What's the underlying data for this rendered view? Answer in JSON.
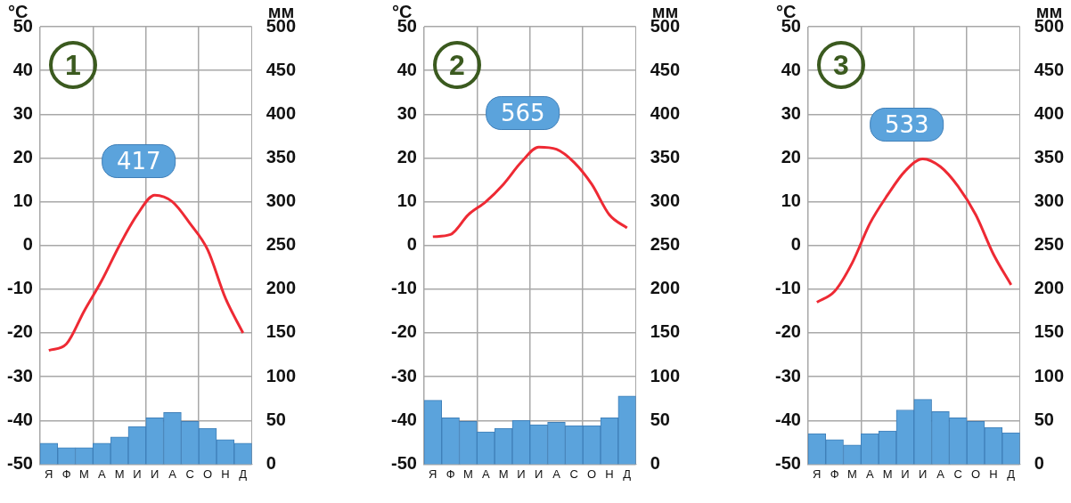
{
  "chart_data": [
    {
      "type": "bar",
      "title": "1",
      "ylabel": "°C",
      "y2label": "мм",
      "categories": [
        "Я",
        "Ф",
        "М",
        "А",
        "М",
        "И",
        "И",
        "А",
        "С",
        "О",
        "Н",
        "Д"
      ],
      "series": [
        {
          "axis": "y2",
          "color": "#5ba3dc",
          "values": [
            24,
            19,
            19,
            24,
            31,
            43,
            53,
            59,
            49,
            41,
            28,
            24
          ]
        },
        {
          "type": "line",
          "color": "#ee2a34",
          "values": [
            -24,
            -22.5,
            -15,
            -8,
            0,
            7,
            11.5,
            10,
            5,
            -1,
            -12,
            -20
          ]
        }
      ],
      "ylim": [
        -50,
        50
      ],
      "yticks": [
        -50,
        -40,
        -30,
        -20,
        -10,
        0,
        10,
        20,
        30,
        40,
        50
      ],
      "y2lim": [
        0,
        500
      ],
      "y2ticks": [
        0,
        50,
        100,
        150,
        200,
        250,
        300,
        350,
        400,
        450,
        500
      ],
      "grid": true,
      "marker": "none",
      "annotations": [
        "417"
      ]
    },
    {
      "type": "bar",
      "title": "2",
      "ylabel": "°C",
      "y2label": "мм",
      "categories": [
        "Я",
        "Ф",
        "М",
        "А",
        "М",
        "И",
        "И",
        "А",
        "С",
        "О",
        "Н",
        "Д"
      ],
      "series": [
        {
          "axis": "y2",
          "color": "#5ba3dc",
          "values": [
            73,
            53,
            49,
            37,
            41,
            50,
            45,
            48,
            44,
            44,
            53,
            78
          ]
        },
        {
          "type": "line",
          "color": "#ee2a34",
          "values": [
            2,
            2.5,
            7,
            10,
            14,
            19,
            22.5,
            22,
            19,
            14,
            7,
            4
          ]
        }
      ],
      "ylim": [
        -50,
        50
      ],
      "yticks": [
        -50,
        -40,
        -30,
        -20,
        -10,
        0,
        10,
        20,
        30,
        40,
        50
      ],
      "y2lim": [
        0,
        500
      ],
      "y2ticks": [
        0,
        50,
        100,
        150,
        200,
        250,
        300,
        350,
        400,
        450,
        500
      ],
      "grid": true,
      "marker": "none",
      "annotations": [
        "565"
      ]
    },
    {
      "type": "bar",
      "title": "3",
      "ylabel": "°C",
      "y2label": "мм",
      "categories": [
        "Я",
        "Ф",
        "М",
        "А",
        "М",
        "И",
        "И",
        "А",
        "С",
        "О",
        "Н",
        "Д"
      ],
      "series": [
        {
          "axis": "y2",
          "color": "#5ba3dc",
          "values": [
            35,
            28,
            22,
            35,
            38,
            62,
            74,
            60,
            53,
            49,
            42,
            36
          ]
        },
        {
          "type": "line",
          "color": "#ee2a34",
          "values": [
            -13,
            -10.5,
            -4,
            5,
            11.5,
            17,
            19.8,
            18,
            13.5,
            7,
            -2,
            -9
          ]
        }
      ],
      "ylim": [
        -50,
        50
      ],
      "yticks": [
        -50,
        -40,
        -30,
        -20,
        -10,
        0,
        10,
        20,
        30,
        40,
        50
      ],
      "y2lim": [
        0,
        500
      ],
      "y2ticks": [
        0,
        50,
        100,
        150,
        200,
        250,
        300,
        350,
        400,
        450,
        500
      ],
      "grid": true,
      "marker": "none",
      "annotations": [
        "533"
      ]
    }
  ]
}
